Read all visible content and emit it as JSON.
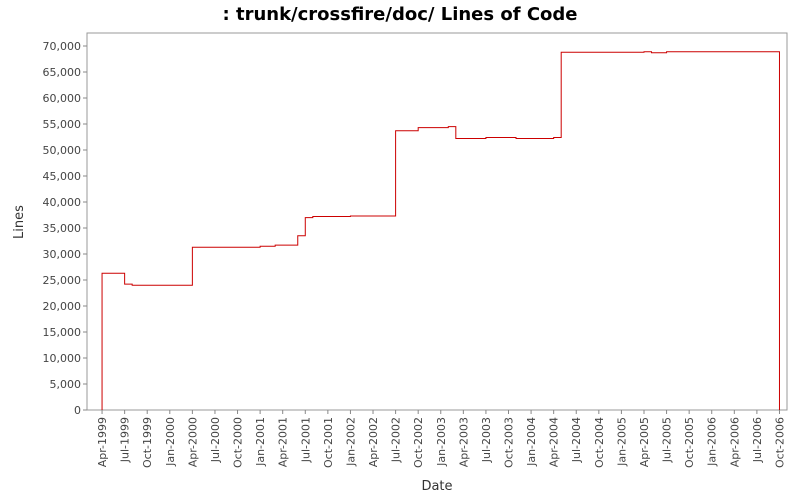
{
  "chart_data": {
    "type": "step",
    "title": ": trunk/crossfire/doc/ Lines of Code",
    "x_label": "Date",
    "y_label": "Lines",
    "x": [
      "1999-04",
      "1999-04",
      "1999-07",
      "1999-08",
      "2000-04",
      "2001-01",
      "2001-03",
      "2001-06",
      "2001-06",
      "2001-07",
      "2001-08",
      "2002-01",
      "2002-07",
      "2002-10",
      "2003-02",
      "2003-03",
      "2003-07",
      "2003-11",
      "2004-04",
      "2004-05",
      "2005-04",
      "2005-05",
      "2005-07",
      "2006-10",
      "2006-10"
    ],
    "series": [
      {
        "name": "Lines",
        "color": "#cc0000",
        "values": [
          0,
          26300,
          24200,
          24000,
          31300,
          31500,
          31700,
          32800,
          33500,
          37000,
          37200,
          37300,
          53700,
          54300,
          54500,
          52200,
          52400,
          52200,
          52400,
          68800,
          68900,
          68700,
          68900,
          68900,
          0
        ]
      }
    ],
    "xlim": [
      "1999-02",
      "2006-11"
    ],
    "xticks": [
      {
        "value": "1999-04",
        "label": "Apr-1999"
      },
      {
        "value": "1999-07",
        "label": "Jul-1999"
      },
      {
        "value": "1999-10",
        "label": "Oct-1999"
      },
      {
        "value": "2000-01",
        "label": "Jan-2000"
      },
      {
        "value": "2000-04",
        "label": "Apr-2000"
      },
      {
        "value": "2000-07",
        "label": "Jul-2000"
      },
      {
        "value": "2000-10",
        "label": "Oct-2000"
      },
      {
        "value": "2001-01",
        "label": "Jan-2001"
      },
      {
        "value": "2001-04",
        "label": "Apr-2001"
      },
      {
        "value": "2001-07",
        "label": "Jul-2001"
      },
      {
        "value": "2001-10",
        "label": "Oct-2001"
      },
      {
        "value": "2002-01",
        "label": "Jan-2002"
      },
      {
        "value": "2002-04",
        "label": "Apr-2002"
      },
      {
        "value": "2002-07",
        "label": "Jul-2002"
      },
      {
        "value": "2002-10",
        "label": "Oct-2002"
      },
      {
        "value": "2003-01",
        "label": "Jan-2003"
      },
      {
        "value": "2003-04",
        "label": "Apr-2003"
      },
      {
        "value": "2003-07",
        "label": "Jul-2003"
      },
      {
        "value": "2003-10",
        "label": "Oct-2003"
      },
      {
        "value": "2004-01",
        "label": "Jan-2004"
      },
      {
        "value": "2004-04",
        "label": "Apr-2004"
      },
      {
        "value": "2004-07",
        "label": "Jul-2004"
      },
      {
        "value": "2004-10",
        "label": "Oct-2004"
      },
      {
        "value": "2005-01",
        "label": "Jan-2005"
      },
      {
        "value": "2005-04",
        "label": "Apr-2005"
      },
      {
        "value": "2005-07",
        "label": "Jul-2005"
      },
      {
        "value": "2005-10",
        "label": "Oct-2005"
      },
      {
        "value": "2006-01",
        "label": "Jan-2006"
      },
      {
        "value": "2006-04",
        "label": "Apr-2006"
      },
      {
        "value": "2006-07",
        "label": "Jul-2006"
      },
      {
        "value": "2006-10",
        "label": "Oct-2006"
      }
    ],
    "ylim": [
      0,
      72500
    ],
    "yticks": [
      0,
      {
        "value": 5000,
        "label": "5,000"
      },
      {
        "value": 10000,
        "label": "10,000"
      },
      {
        "value": 15000,
        "label": "15,000"
      },
      {
        "value": 20000,
        "label": "20,000"
      },
      {
        "value": 25000,
        "label": "25,000"
      },
      {
        "value": 30000,
        "label": "30,000"
      },
      {
        "value": 35000,
        "label": "35,000"
      },
      {
        "value": 40000,
        "label": "40,000"
      },
      {
        "value": 45000,
        "label": "45,000"
      },
      {
        "value": 50000,
        "label": "50,000"
      },
      {
        "value": 55000,
        "label": "55,000"
      },
      {
        "value": 60000,
        "label": "60,000"
      },
      {
        "value": 65000,
        "label": "65,000"
      },
      {
        "value": 70000,
        "label": "70,000"
      }
    ],
    "grid": false
  }
}
